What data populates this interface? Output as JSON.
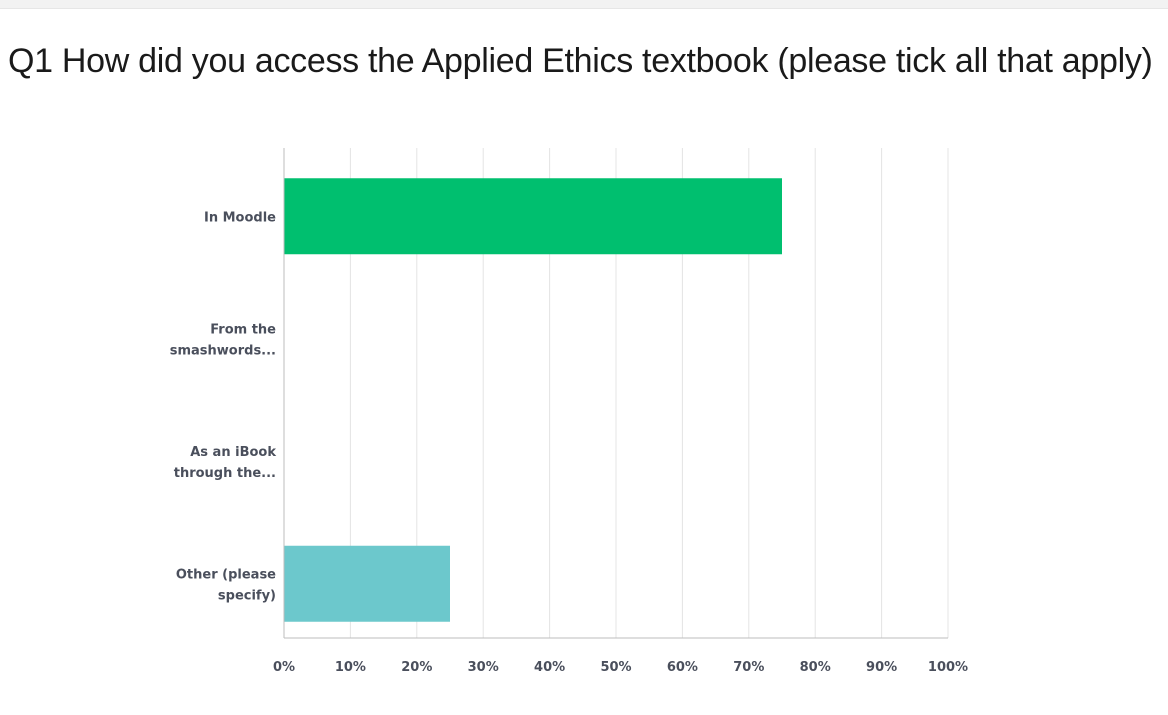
{
  "question": {
    "title": "Q1 How did you access the Applied Ethics textbook (please tick all that apply)"
  },
  "colors": {
    "bar_colors": [
      "#00bf6f",
      "#00bf6f",
      "#00bf6f",
      "#6cc8cc"
    ],
    "grid": "#e4e4e4",
    "axis": "#bdbdbd",
    "label": "#4a4f5c"
  },
  "chart_data": {
    "type": "bar",
    "orientation": "horizontal",
    "title": "",
    "xlabel": "",
    "ylabel": "",
    "categories": [
      [
        "In Moodle"
      ],
      [
        "From the",
        "smashwords..."
      ],
      [
        "As an iBook",
        "through the..."
      ],
      [
        "Other (please",
        "specify)"
      ]
    ],
    "values": [
      75,
      0,
      0,
      25
    ],
    "value_unit": "%",
    "xlim": [
      0,
      100
    ],
    "x_ticks": [
      "0%",
      "10%",
      "20%",
      "30%",
      "40%",
      "50%",
      "60%",
      "70%",
      "80%",
      "90%",
      "100%"
    ],
    "grid": true,
    "legend": "none"
  }
}
